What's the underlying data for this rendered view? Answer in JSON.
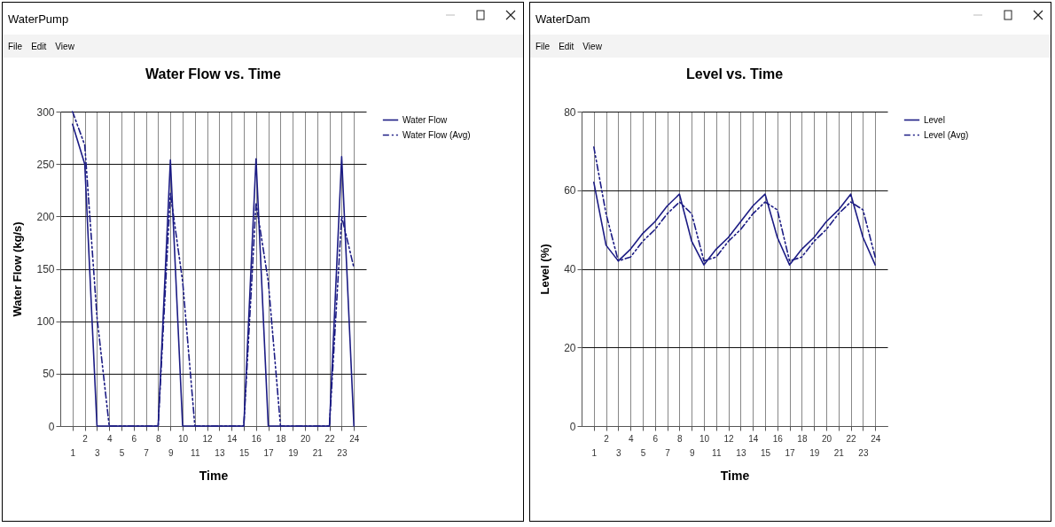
{
  "chart_data": [
    {
      "type": "line",
      "title": "Water Flow vs. Time",
      "xlabel": "Time",
      "ylabel": "Water Flow (kg/s)",
      "annotations": [
        "WaterPump",
        "File",
        "Edit",
        "View"
      ],
      "categories": [
        "1",
        "2",
        "3",
        "4",
        "5",
        "6",
        "7",
        "8",
        "9",
        "10",
        "11",
        "12",
        "13",
        "14",
        "15",
        "16",
        "17",
        "18",
        "19",
        "20",
        "21",
        "22",
        "23",
        "24"
      ],
      "ylim": [
        0,
        300
      ],
      "yticks": [
        0,
        50,
        100,
        150,
        200,
        250,
        300
      ],
      "grid": true,
      "legend": "right",
      "series": [
        {
          "name": "Water Flow",
          "color": "#1c1c84",
          "line_style": "solid",
          "values": [
            288,
            250,
            0,
            0,
            0,
            0,
            0,
            0,
            254,
            0,
            0,
            0,
            0,
            0,
            0,
            255,
            0,
            0,
            0,
            0,
            0,
            0,
            257,
            0
          ]
        },
        {
          "name": "Water Flow (Avg)",
          "color": "#1c1c84",
          "line_style": "dashed",
          "values": [
            300,
            268,
            104,
            0,
            0,
            0,
            0,
            0,
            222,
            138,
            0,
            0,
            0,
            0,
            0,
            213,
            138,
            0,
            0,
            0,
            0,
            0,
            200,
            151
          ]
        }
      ]
    },
    {
      "type": "line",
      "title": "Level vs. Time",
      "xlabel": "Time",
      "ylabel": "Level (%)",
      "annotations": [
        "WaterDam",
        "File",
        "Edit",
        "View"
      ],
      "categories": [
        "1",
        "2",
        "3",
        "4",
        "5",
        "6",
        "7",
        "8",
        "9",
        "10",
        "11",
        "12",
        "13",
        "14",
        "15",
        "16",
        "17",
        "18",
        "19",
        "20",
        "21",
        "22",
        "23",
        "24"
      ],
      "ylim": [
        0,
        80
      ],
      "yticks": [
        0,
        20,
        40,
        60,
        80
      ],
      "grid": true,
      "legend": "right",
      "series": [
        {
          "name": "Level",
          "color": "#1c1c84",
          "line_style": "solid",
          "values": [
            62,
            46,
            42,
            45,
            49,
            52,
            56,
            59,
            47,
            41,
            45,
            48,
            52,
            56,
            59,
            48,
            41,
            45,
            48,
            52,
            55,
            59,
            48,
            41
          ]
        },
        {
          "name": "Level (Avg)",
          "color": "#1c1c84",
          "line_style": "dashed",
          "values": [
            71,
            54,
            42,
            43,
            47,
            50,
            54,
            57,
            54,
            42,
            43,
            47,
            50,
            54,
            57,
            55,
            42,
            43,
            47,
            50,
            54,
            57,
            55,
            43
          ]
        }
      ]
    }
  ]
}
